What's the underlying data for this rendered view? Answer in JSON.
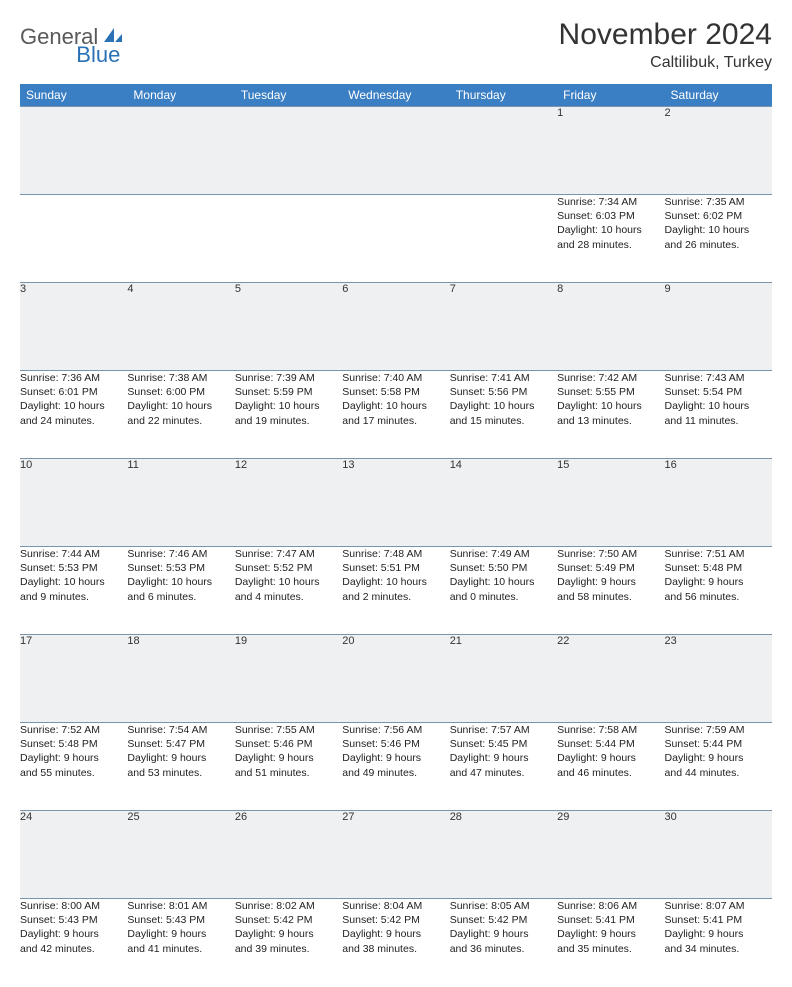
{
  "logo": {
    "general": "General",
    "blue": "Blue"
  },
  "title": "November 2024",
  "location": "Caltilibuk, Turkey",
  "colors": {
    "header_bg": "#3a7fc4",
    "header_text": "#ffffff",
    "daynum_bg": "#eef0f2",
    "border": "#7a94ab",
    "logo_gray": "#5a5a5a",
    "logo_blue": "#2a72b5"
  },
  "day_headers": [
    "Sunday",
    "Monday",
    "Tuesday",
    "Wednesday",
    "Thursday",
    "Friday",
    "Saturday"
  ],
  "weeks": [
    {
      "nums": [
        "",
        "",
        "",
        "",
        "",
        "1",
        "2"
      ],
      "cells": [
        {},
        {},
        {},
        {},
        {},
        {
          "sunrise": "Sunrise: 7:34 AM",
          "sunset": "Sunset: 6:03 PM",
          "day1": "Daylight: 10 hours",
          "day2": "and 28 minutes."
        },
        {
          "sunrise": "Sunrise: 7:35 AM",
          "sunset": "Sunset: 6:02 PM",
          "day1": "Daylight: 10 hours",
          "day2": "and 26 minutes."
        }
      ]
    },
    {
      "nums": [
        "3",
        "4",
        "5",
        "6",
        "7",
        "8",
        "9"
      ],
      "cells": [
        {
          "sunrise": "Sunrise: 7:36 AM",
          "sunset": "Sunset: 6:01 PM",
          "day1": "Daylight: 10 hours",
          "day2": "and 24 minutes."
        },
        {
          "sunrise": "Sunrise: 7:38 AM",
          "sunset": "Sunset: 6:00 PM",
          "day1": "Daylight: 10 hours",
          "day2": "and 22 minutes."
        },
        {
          "sunrise": "Sunrise: 7:39 AM",
          "sunset": "Sunset: 5:59 PM",
          "day1": "Daylight: 10 hours",
          "day2": "and 19 minutes."
        },
        {
          "sunrise": "Sunrise: 7:40 AM",
          "sunset": "Sunset: 5:58 PM",
          "day1": "Daylight: 10 hours",
          "day2": "and 17 minutes."
        },
        {
          "sunrise": "Sunrise: 7:41 AM",
          "sunset": "Sunset: 5:56 PM",
          "day1": "Daylight: 10 hours",
          "day2": "and 15 minutes."
        },
        {
          "sunrise": "Sunrise: 7:42 AM",
          "sunset": "Sunset: 5:55 PM",
          "day1": "Daylight: 10 hours",
          "day2": "and 13 minutes."
        },
        {
          "sunrise": "Sunrise: 7:43 AM",
          "sunset": "Sunset: 5:54 PM",
          "day1": "Daylight: 10 hours",
          "day2": "and 11 minutes."
        }
      ]
    },
    {
      "nums": [
        "10",
        "11",
        "12",
        "13",
        "14",
        "15",
        "16"
      ],
      "cells": [
        {
          "sunrise": "Sunrise: 7:44 AM",
          "sunset": "Sunset: 5:53 PM",
          "day1": "Daylight: 10 hours",
          "day2": "and 9 minutes."
        },
        {
          "sunrise": "Sunrise: 7:46 AM",
          "sunset": "Sunset: 5:53 PM",
          "day1": "Daylight: 10 hours",
          "day2": "and 6 minutes."
        },
        {
          "sunrise": "Sunrise: 7:47 AM",
          "sunset": "Sunset: 5:52 PM",
          "day1": "Daylight: 10 hours",
          "day2": "and 4 minutes."
        },
        {
          "sunrise": "Sunrise: 7:48 AM",
          "sunset": "Sunset: 5:51 PM",
          "day1": "Daylight: 10 hours",
          "day2": "and 2 minutes."
        },
        {
          "sunrise": "Sunrise: 7:49 AM",
          "sunset": "Sunset: 5:50 PM",
          "day1": "Daylight: 10 hours",
          "day2": "and 0 minutes."
        },
        {
          "sunrise": "Sunrise: 7:50 AM",
          "sunset": "Sunset: 5:49 PM",
          "day1": "Daylight: 9 hours",
          "day2": "and 58 minutes."
        },
        {
          "sunrise": "Sunrise: 7:51 AM",
          "sunset": "Sunset: 5:48 PM",
          "day1": "Daylight: 9 hours",
          "day2": "and 56 minutes."
        }
      ]
    },
    {
      "nums": [
        "17",
        "18",
        "19",
        "20",
        "21",
        "22",
        "23"
      ],
      "cells": [
        {
          "sunrise": "Sunrise: 7:52 AM",
          "sunset": "Sunset: 5:48 PM",
          "day1": "Daylight: 9 hours",
          "day2": "and 55 minutes."
        },
        {
          "sunrise": "Sunrise: 7:54 AM",
          "sunset": "Sunset: 5:47 PM",
          "day1": "Daylight: 9 hours",
          "day2": "and 53 minutes."
        },
        {
          "sunrise": "Sunrise: 7:55 AM",
          "sunset": "Sunset: 5:46 PM",
          "day1": "Daylight: 9 hours",
          "day2": "and 51 minutes."
        },
        {
          "sunrise": "Sunrise: 7:56 AM",
          "sunset": "Sunset: 5:46 PM",
          "day1": "Daylight: 9 hours",
          "day2": "and 49 minutes."
        },
        {
          "sunrise": "Sunrise: 7:57 AM",
          "sunset": "Sunset: 5:45 PM",
          "day1": "Daylight: 9 hours",
          "day2": "and 47 minutes."
        },
        {
          "sunrise": "Sunrise: 7:58 AM",
          "sunset": "Sunset: 5:44 PM",
          "day1": "Daylight: 9 hours",
          "day2": "and 46 minutes."
        },
        {
          "sunrise": "Sunrise: 7:59 AM",
          "sunset": "Sunset: 5:44 PM",
          "day1": "Daylight: 9 hours",
          "day2": "and 44 minutes."
        }
      ]
    },
    {
      "nums": [
        "24",
        "25",
        "26",
        "27",
        "28",
        "29",
        "30"
      ],
      "cells": [
        {
          "sunrise": "Sunrise: 8:00 AM",
          "sunset": "Sunset: 5:43 PM",
          "day1": "Daylight: 9 hours",
          "day2": "and 42 minutes."
        },
        {
          "sunrise": "Sunrise: 8:01 AM",
          "sunset": "Sunset: 5:43 PM",
          "day1": "Daylight: 9 hours",
          "day2": "and 41 minutes."
        },
        {
          "sunrise": "Sunrise: 8:02 AM",
          "sunset": "Sunset: 5:42 PM",
          "day1": "Daylight: 9 hours",
          "day2": "and 39 minutes."
        },
        {
          "sunrise": "Sunrise: 8:04 AM",
          "sunset": "Sunset: 5:42 PM",
          "day1": "Daylight: 9 hours",
          "day2": "and 38 minutes."
        },
        {
          "sunrise": "Sunrise: 8:05 AM",
          "sunset": "Sunset: 5:42 PM",
          "day1": "Daylight: 9 hours",
          "day2": "and 36 minutes."
        },
        {
          "sunrise": "Sunrise: 8:06 AM",
          "sunset": "Sunset: 5:41 PM",
          "day1": "Daylight: 9 hours",
          "day2": "and 35 minutes."
        },
        {
          "sunrise": "Sunrise: 8:07 AM",
          "sunset": "Sunset: 5:41 PM",
          "day1": "Daylight: 9 hours",
          "day2": "and 34 minutes."
        }
      ]
    }
  ]
}
